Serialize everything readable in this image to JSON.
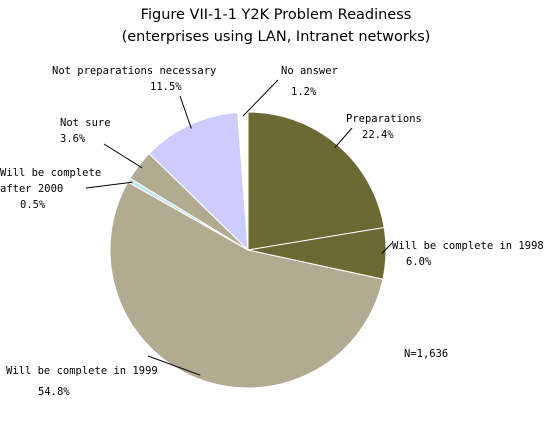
{
  "chart_data": {
    "type": "pie",
    "title": "Figure VII-1-1 Y2K Problem Readiness",
    "subtitle": "(enterprises using LAN, Intranet networks)",
    "note": "N=1,636",
    "slices": [
      {
        "label": "Preparations",
        "value": 22.4,
        "value_text": "22.4%",
        "color": "#6b6a35"
      },
      {
        "label": "Will be complete in 1998",
        "value": 6.0,
        "value_text": "6.0%",
        "color": "#6b6a35"
      },
      {
        "label": "Will be complete in 1999",
        "value": 54.8,
        "value_text": "54.8%",
        "color": "#b0ab91"
      },
      {
        "label": "Will be complete after 2000",
        "value": 0.5,
        "value_text": "0.5%",
        "color": "#c6e6e6"
      },
      {
        "label": "Not sure",
        "value": 3.6,
        "value_text": "3.6%",
        "color": "#b0ab91"
      },
      {
        "label": "Not preparations necessary",
        "value": 11.5,
        "value_text": "11.5%",
        "color": "#ccccff"
      },
      {
        "label": "No answer",
        "value": 1.2,
        "value_text": "1.2%",
        "color": "#ffffff"
      }
    ]
  }
}
